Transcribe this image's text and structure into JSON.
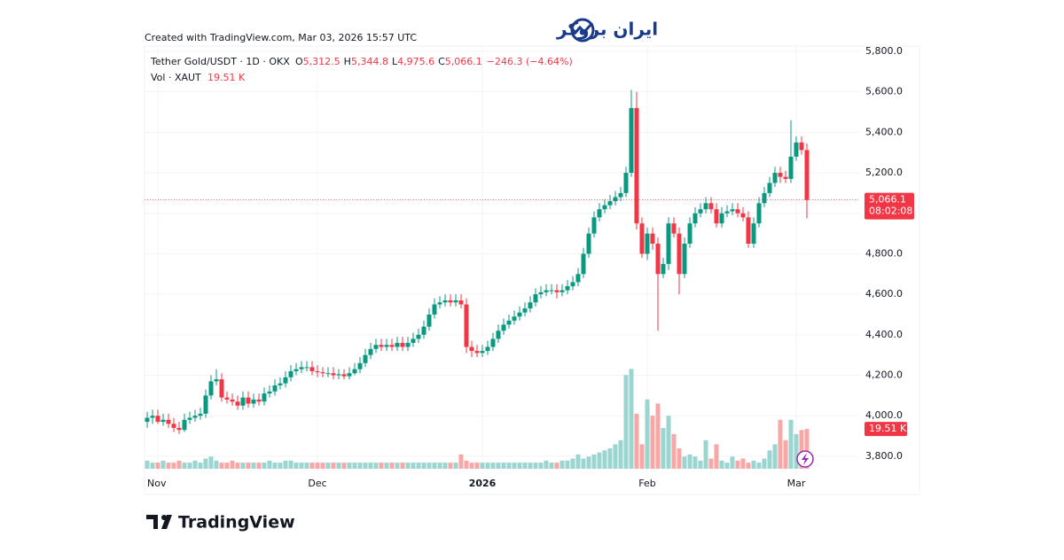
{
  "header": {
    "credit": "Created with TradingView.com, Mar 03, 2026 15:57 UTC",
    "brand": "ایران بروکر",
    "footer": "TradingView"
  },
  "chart_data": {
    "type": "candlestick",
    "legend": {
      "symbol": "Tether Gold/USDT · 1D · OKX",
      "ohlc": [
        {
          "key": "O",
          "text": "5,312.5"
        },
        {
          "key": "H",
          "text": "5,344.8"
        },
        {
          "key": "L",
          "text": "4,975.6"
        },
        {
          "key": "C",
          "text": "5,066.1"
        }
      ],
      "change": "−246.3 (−4.64%)",
      "vol_label": "Vol · XAUT"
    },
    "up_color": "#089981",
    "down_color": "#f23645",
    "vol_up_color": "#9ad6cf",
    "vol_down_color": "#f7a7a5",
    "open": [
      3970,
      3990,
      4000,
      3970,
      3980,
      3960,
      3940,
      3930,
      3980,
      3990,
      4000,
      4010,
      4100,
      4170,
      4180,
      4090,
      4080,
      4070,
      4050,
      4090,
      4060,
      4080,
      4070,
      4110,
      4120,
      4150,
      4160,
      4190,
      4220,
      4230,
      4240,
      4240,
      4220,
      4215,
      4210,
      4210,
      4200,
      4205,
      4195,
      4210,
      4230,
      4260,
      4300,
      4330,
      4350,
      4340,
      4350,
      4340,
      4360,
      4340,
      4360,
      4380,
      4400,
      4440,
      4500,
      4550,
      4560,
      4570,
      4560,
      4570,
      4550,
      4340,
      4320,
      4310,
      4320,
      4340,
      4380,
      4420,
      4450,
      4470,
      4490,
      4510,
      4530,
      4560,
      4600,
      4610,
      4620,
      4620,
      4610,
      4620,
      4640,
      4660,
      4700,
      4800,
      4900,
      4980,
      5020,
      5040,
      5060,
      5080,
      5100,
      5200,
      5520,
      4950,
      4800,
      4900,
      4850,
      4700,
      4750,
      4950,
      4900,
      4700,
      4850,
      4950,
      5000,
      5020,
      5050,
      5020,
      4950,
      5000,
      5010,
      5020,
      5000,
      4980,
      4850,
      4950,
      5050,
      5100,
      5150,
      5200,
      5180,
      5170,
      5280,
      5350,
      5312.5
    ],
    "high": [
      4020,
      4030,
      4030,
      4010,
      4010,
      3990,
      3970,
      4010,
      4020,
      4030,
      4040,
      4130,
      4200,
      4230,
      4210,
      4120,
      4110,
      4100,
      4120,
      4120,
      4110,
      4110,
      4140,
      4150,
      4180,
      4190,
      4220,
      4250,
      4260,
      4270,
      4270,
      4270,
      4250,
      4240,
      4240,
      4240,
      4230,
      4230,
      4240,
      4260,
      4290,
      4330,
      4360,
      4380,
      4380,
      4380,
      4380,
      4390,
      4390,
      4390,
      4410,
      4430,
      4470,
      4530,
      4580,
      4590,
      4600,
      4600,
      4600,
      4600,
      4580,
      4370,
      4350,
      4350,
      4370,
      4410,
      4450,
      4480,
      4500,
      4520,
      4540,
      4560,
      4590,
      4630,
      4640,
      4650,
      4650,
      4650,
      4650,
      4670,
      4690,
      4730,
      4830,
      4930,
      5010,
      5050,
      5070,
      5090,
      5110,
      5130,
      5230,
      5610,
      5600,
      4980,
      4930,
      4930,
      4880,
      4780,
      4980,
      4980,
      4930,
      4880,
      4980,
      5030,
      5050,
      5080,
      5080,
      5050,
      5030,
      5040,
      5050,
      5050,
      5030,
      5010,
      4980,
      5080,
      5130,
      5180,
      5230,
      5230,
      5210,
      5460,
      5380,
      5380,
      5344.8
    ],
    "low": [
      3940,
      3960,
      3960,
      3950,
      3940,
      3920,
      3910,
      3920,
      3960,
      3970,
      3980,
      3990,
      4080,
      4150,
      4070,
      4060,
      4050,
      4030,
      4030,
      4040,
      4040,
      4050,
      4050,
      4090,
      4100,
      4130,
      4140,
      4170,
      4200,
      4210,
      4220,
      4200,
      4190,
      4190,
      4190,
      4180,
      4180,
      4180,
      4180,
      4200,
      4210,
      4240,
      4280,
      4310,
      4320,
      4320,
      4320,
      4320,
      4320,
      4320,
      4340,
      4360,
      4380,
      4420,
      4480,
      4530,
      4540,
      4540,
      4540,
      4530,
      4310,
      4290,
      4290,
      4290,
      4300,
      4320,
      4360,
      4400,
      4430,
      4450,
      4470,
      4490,
      4510,
      4540,
      4580,
      4590,
      4600,
      4580,
      4590,
      4600,
      4620,
      4640,
      4680,
      4780,
      4880,
      4960,
      5000,
      5020,
      5040,
      5060,
      5080,
      5180,
      4920,
      4780,
      4770,
      4820,
      4420,
      4680,
      4720,
      4880,
      4600,
      4680,
      4830,
      4930,
      4980,
      5000,
      5000,
      4930,
      4930,
      4980,
      4990,
      4980,
      4960,
      4830,
      4830,
      4930,
      5030,
      5080,
      5130,
      5150,
      5150,
      5150,
      5260,
      5290,
      4975.6
    ],
    "close": [
      3990,
      4000,
      3970,
      3980,
      3960,
      3940,
      3930,
      3980,
      3990,
      4000,
      4010,
      4100,
      4170,
      4180,
      4090,
      4080,
      4070,
      4050,
      4090,
      4060,
      4080,
      4070,
      4110,
      4120,
      4150,
      4160,
      4190,
      4220,
      4230,
      4240,
      4240,
      4220,
      4215,
      4210,
      4210,
      4200,
      4205,
      4195,
      4210,
      4230,
      4260,
      4300,
      4330,
      4350,
      4340,
      4350,
      4340,
      4360,
      4340,
      4360,
      4380,
      4400,
      4440,
      4500,
      4550,
      4560,
      4570,
      4560,
      4570,
      4550,
      4340,
      4320,
      4310,
      4320,
      4340,
      4380,
      4420,
      4450,
      4470,
      4490,
      4510,
      4530,
      4560,
      4600,
      4610,
      4620,
      4620,
      4610,
      4620,
      4640,
      4660,
      4700,
      4800,
      4900,
      4980,
      5020,
      5040,
      5060,
      5080,
      5100,
      5200,
      5520,
      4950,
      4800,
      4900,
      4850,
      4700,
      4750,
      4950,
      4900,
      4700,
      4850,
      4950,
      5000,
      5020,
      5050,
      5020,
      4950,
      5000,
      5010,
      5020,
      5000,
      4980,
      4850,
      4950,
      5050,
      5100,
      5150,
      5200,
      5180,
      5170,
      5280,
      5350,
      5312.5,
      5066.1
    ],
    "volume": [
      4,
      3,
      3,
      4,
      3,
      3,
      4,
      3,
      3,
      4,
      3,
      5,
      6,
      4,
      3,
      3,
      4,
      3,
      3,
      3,
      3,
      3,
      3,
      4,
      3,
      3,
      4,
      4,
      3,
      3,
      3,
      3,
      3,
      3,
      3,
      3,
      3,
      3,
      3,
      3,
      3,
      3,
      3,
      3,
      3,
      3,
      3,
      3,
      3,
      3,
      3,
      3,
      3,
      3,
      3,
      3,
      3,
      3,
      3,
      7,
      4,
      3,
      3,
      3,
      3,
      3,
      3,
      3,
      3,
      3,
      3,
      3,
      3,
      3,
      3,
      4,
      3,
      3,
      4,
      4,
      5,
      7,
      5,
      6,
      7,
      8,
      9,
      10,
      12,
      14,
      46,
      49,
      27,
      12,
      34,
      26,
      32,
      20,
      26,
      17,
      10,
      6,
      7,
      6,
      4,
      14,
      5,
      12,
      4,
      3,
      6,
      4,
      5,
      3,
      4,
      3,
      5,
      9,
      12,
      24,
      14,
      24,
      17,
      19,
      19.51
    ],
    "last_price": {
      "value": 5066.1,
      "label": "5,066.1"
    },
    "countdown": "08:02:08",
    "last_volume": {
      "value": 19.51,
      "label": "19.51 K"
    },
    "ylim": [
      3712,
      5813
    ],
    "yticks": [
      {
        "value": 3800,
        "label": "3,800.0"
      },
      {
        "value": 4000,
        "label": "4,000.0"
      },
      {
        "value": 4200,
        "label": "4,200.0"
      },
      {
        "value": 4400,
        "label": "4,400.0"
      },
      {
        "value": 4600,
        "label": "4,600.0"
      },
      {
        "value": 4800,
        "label": "4,800.0"
      },
      {
        "value": 5000,
        "label": "5,000.0"
      },
      {
        "value": 5200,
        "label": "5,200.0"
      },
      {
        "value": 5400,
        "label": "5,400.0"
      },
      {
        "value": 5600,
        "label": "5,600.0"
      },
      {
        "value": 5800,
        "label": "5,800.0"
      }
    ],
    "xticks": [
      {
        "value": 2,
        "label": "Nov"
      },
      {
        "value": 32,
        "label": "Dec"
      },
      {
        "value": 63,
        "label": "2026"
      },
      {
        "value": 94,
        "label": "Feb"
      },
      {
        "value": 122,
        "label": "Mar"
      }
    ],
    "grid": true
  }
}
